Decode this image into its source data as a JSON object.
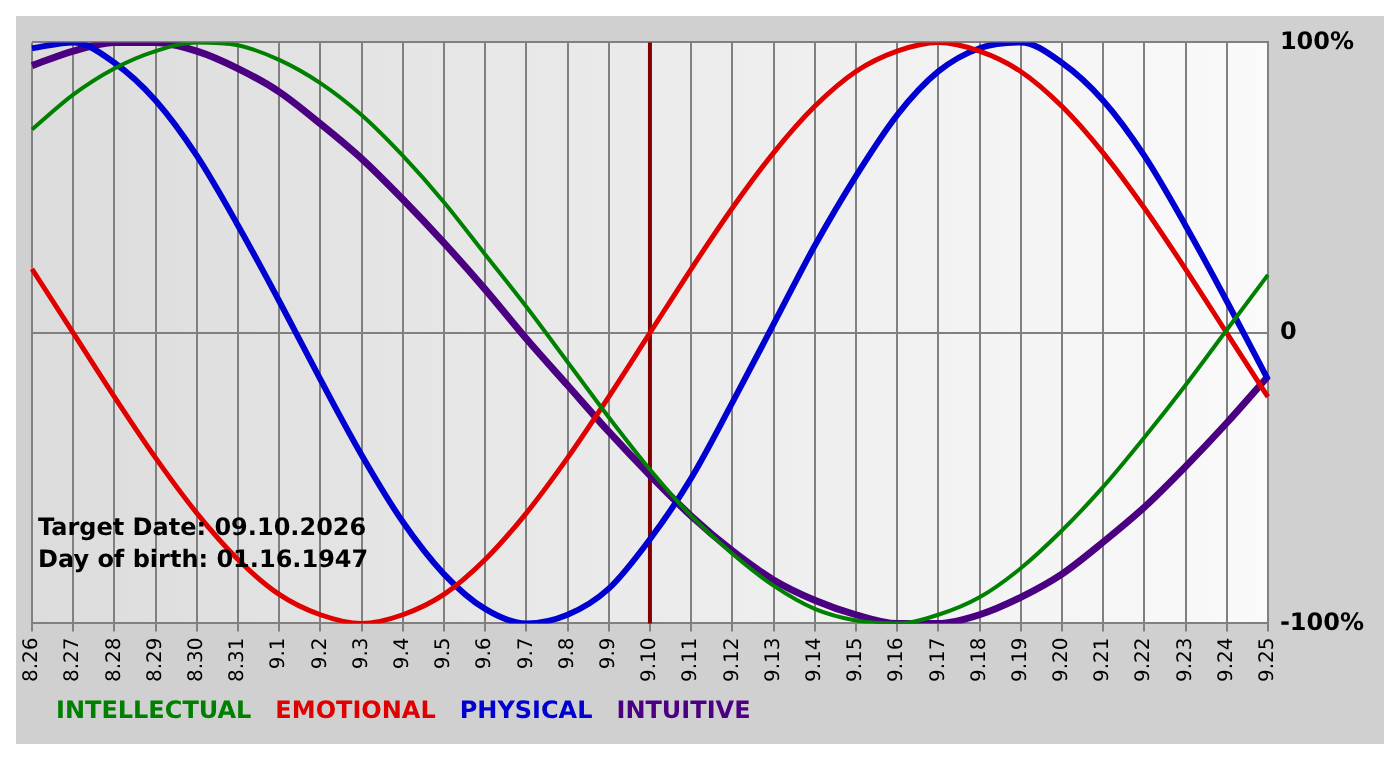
{
  "chart_data": {
    "type": "line",
    "categories": [
      "8.26",
      "8.27",
      "8.28",
      "8.29",
      "8.30",
      "8.31",
      "9.1",
      "9.2",
      "9.3",
      "9.4",
      "9.5",
      "9.6",
      "9.7",
      "9.8",
      "9.9",
      "9.10",
      "9.11",
      "9.12",
      "9.13",
      "9.14",
      "9.15",
      "9.16",
      "9.17",
      "9.18",
      "9.19",
      "9.20",
      "9.21",
      "9.22",
      "9.23",
      "9.24",
      "9.25"
    ],
    "series": [
      {
        "name": "INTELLECTUAL",
        "color": "#008000",
        "values": [
          70,
          82,
          91,
          97,
          100,
          99,
          94,
          86,
          75,
          61,
          45,
          27,
          9,
          -10,
          -29,
          -47,
          -63,
          -76,
          -87,
          -95,
          -99,
          -100,
          -97,
          -91,
          -81,
          -68,
          -53,
          -36,
          -18,
          1,
          20
        ]
      },
      {
        "name": "EMOTIONAL",
        "color": "#e00000",
        "values": [
          22,
          0,
          -22,
          -43,
          -62,
          -78,
          -90,
          -97,
          -100,
          -97,
          -90,
          -78,
          -62,
          -43,
          -22,
          0,
          22,
          43,
          62,
          78,
          90,
          97,
          100,
          97,
          90,
          78,
          62,
          43,
          22,
          0,
          -22
        ]
      },
      {
        "name": "PHYSICAL",
        "color": "#0000d0",
        "values": [
          98,
          100,
          93,
          80,
          61,
          37,
          11,
          -16,
          -42,
          -65,
          -83,
          -95,
          -100,
          -97,
          -88,
          -71,
          -50,
          -24,
          3,
          30,
          54,
          75,
          90,
          98,
          100,
          93,
          80,
          61,
          37,
          11,
          -16
        ]
      },
      {
        "name": "INTUITIVE",
        "color": "#4b0082",
        "values": [
          92,
          97,
          100,
          100,
          97,
          91,
          83,
          72,
          60,
          46,
          31,
          15,
          -2,
          -18,
          -34,
          -49,
          -63,
          -75,
          -85,
          -92,
          -97,
          -100,
          -100,
          -97,
          -91,
          -83,
          -72,
          -60,
          -46,
          -31,
          -15
        ]
      }
    ],
    "ylim": [
      -100,
      100
    ],
    "yticks": [
      {
        "value": -100,
        "label": "-100%"
      },
      0,
      {
        "value": 100,
        "label": "100%"
      }
    ],
    "grid": true,
    "marker": "none",
    "legend": "bottom",
    "ref_lines": [
      {
        "axis": "x",
        "value": "9.10",
        "color": "#800000"
      }
    ],
    "annotations": [
      "Target Date: 09.10.2026",
      "Day of birth: 01.16.1947"
    ]
  }
}
